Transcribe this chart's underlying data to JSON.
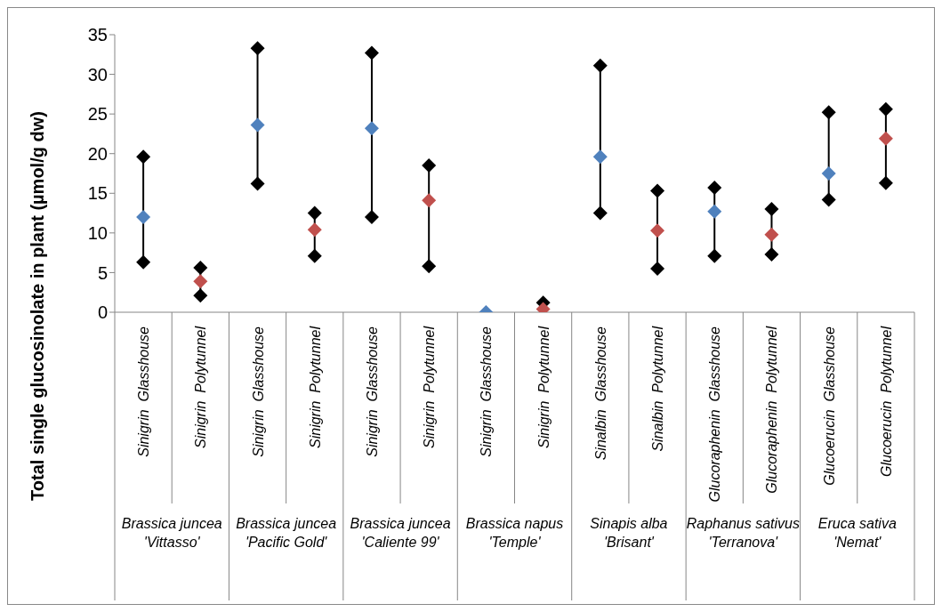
{
  "chart_data": {
    "type": "scatter",
    "ylabel": "Total single glucosinolate in plant (µmol/g dw)",
    "categories": [
      "Sinigrin  Glasshouse",
      "Sinigrin  Polytunnel",
      "Sinigrin  Glasshouse",
      "Sinigrin  Polytunnel",
      "Sinigrin  Glasshouse",
      "Sinigrin  Polytunnel",
      "Sinigrin  Glasshouse",
      "Sinigrin  Polytunnel",
      "Sinalbin  Glasshouse",
      "Sinalbin  Polytunnel",
      "Glucoraphenin  Glasshouse",
      "Glucoraphenin  Polytunnel",
      "Glucoerucin  Glasshouse",
      "Glucoerucin  Polytunnel"
    ],
    "series": [
      {
        "color": "#000000",
        "values": [
          6.3,
          2.1,
          16.2,
          7.1,
          12.0,
          5.8,
          null,
          null,
          12.5,
          5.5,
          7.1,
          7.3,
          14.2,
          16.3
        ]
      },
      {
        "color": "#000000",
        "values": [
          19.6,
          5.6,
          33.3,
          12.5,
          32.7,
          18.5,
          null,
          1.2,
          31.1,
          15.3,
          15.7,
          13.0,
          25.2,
          25.6
        ]
      },
      {
        "color": "#4f81bd",
        "values": [
          12.0,
          null,
          23.6,
          null,
          23.2,
          null,
          0,
          null,
          19.6,
          null,
          12.7,
          null,
          17.5,
          null
        ]
      },
      {
        "color": "#c0504d",
        "values": [
          null,
          3.9,
          null,
          10.4,
          null,
          14.1,
          null,
          0.4,
          null,
          10.3,
          null,
          9.8,
          null,
          21.9
        ]
      }
    ],
    "annotations": [
      "Brassica juncea 'Vittasso'",
      "Brassica juncea 'Pacific Gold'",
      "Brassica juncea 'Caliente 99'",
      "Brassica napus 'Temple'",
      "Sinapis alba 'Brisant'",
      "Raphanus sativus 'Terranova'",
      "Eruca sativa 'Nemat'"
    ],
    "ylim": [
      0,
      35
    ],
    "yticks": [
      0,
      5,
      10,
      15,
      20,
      25,
      30,
      35
    ],
    "marker": "diamond"
  }
}
